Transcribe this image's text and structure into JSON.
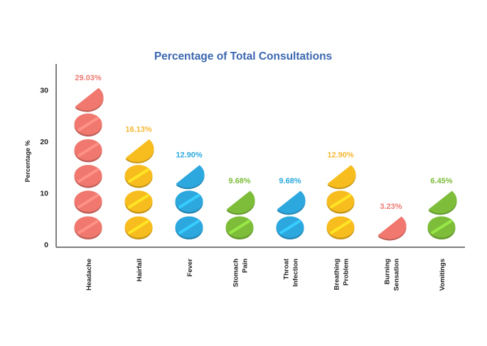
{
  "chart_data": {
    "type": "bar",
    "title": "Percentage of Total Consultations",
    "ylabel": "Percentage %",
    "xlabel": "",
    "ylim": [
      0,
      35
    ],
    "yticks": [
      0,
      10,
      20,
      30
    ],
    "unit_per_pill": 5,
    "grid": false,
    "categories": [
      [
        "Headache"
      ],
      [
        "Hairfall"
      ],
      [
        "Fever"
      ],
      [
        "Stomach",
        "Pain"
      ],
      [
        "Throat",
        "Infection"
      ],
      [
        "Breathing",
        "Problem"
      ],
      [
        "Burning",
        "Sensation"
      ],
      [
        "Vomitings"
      ]
    ],
    "values": [
      29.03,
      16.13,
      12.9,
      9.68,
      9.68,
      12.9,
      3.23,
      6.45
    ],
    "value_labels": [
      "29.03%",
      "16.13%",
      "12.90%",
      "9.68%",
      "9.68%",
      "12.90%",
      "3.23%",
      "6.45%"
    ],
    "colors": [
      "#f0786f",
      "#f7bc1e",
      "#2da8df",
      "#7dbd3a",
      "#2da8df",
      "#f7bc1e",
      "#f0786f",
      "#7dbd3a"
    ],
    "label_colors": [
      "#ee7a72",
      "#f5b830",
      "#2aa9dd",
      "#7cbd3b",
      "#2aa9dd",
      "#f5b830",
      "#ee7a72",
      "#7cbd3b"
    ]
  }
}
